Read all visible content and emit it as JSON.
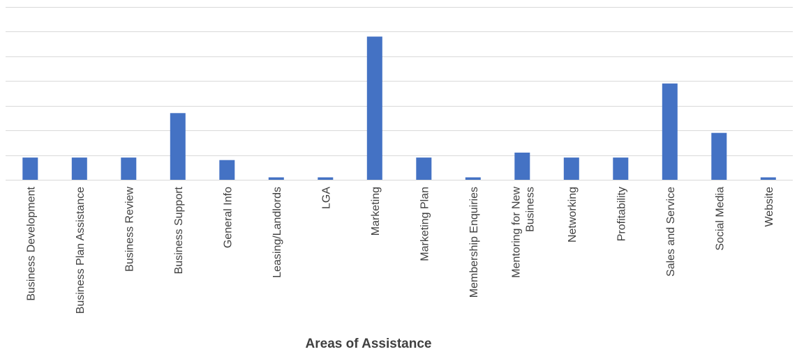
{
  "chart_data": {
    "type": "bar",
    "title": "",
    "xlabel": "Areas of Assistance",
    "ylabel": "",
    "categories": [
      [
        "Business Development"
      ],
      [
        "Business Plan Assistance"
      ],
      [
        "Business Review"
      ],
      [
        "Business Support"
      ],
      [
        "General Info"
      ],
      [
        "Leasing/Landlords"
      ],
      [
        "LGA"
      ],
      [
        "Marketing"
      ],
      [
        "Marketing Plan"
      ],
      [
        "Membership Enquiries"
      ],
      [
        "Mentoring for New",
        "Business"
      ],
      [
        "Networking"
      ],
      [
        "Profitability"
      ],
      [
        "Sales and Service"
      ],
      [
        "Social Media"
      ],
      [
        "Website"
      ]
    ],
    "series": [
      {
        "values": [
          9,
          9,
          9,
          27,
          8,
          1,
          1,
          58,
          9,
          1,
          11,
          9,
          9,
          39,
          19,
          1
        ]
      }
    ],
    "ylim": [
      0,
      70
    ],
    "grid": true,
    "legend": "none",
    "colors": {
      "bar": "#4472C4",
      "grid": "#D9D9D9",
      "text": "#404040"
    }
  }
}
